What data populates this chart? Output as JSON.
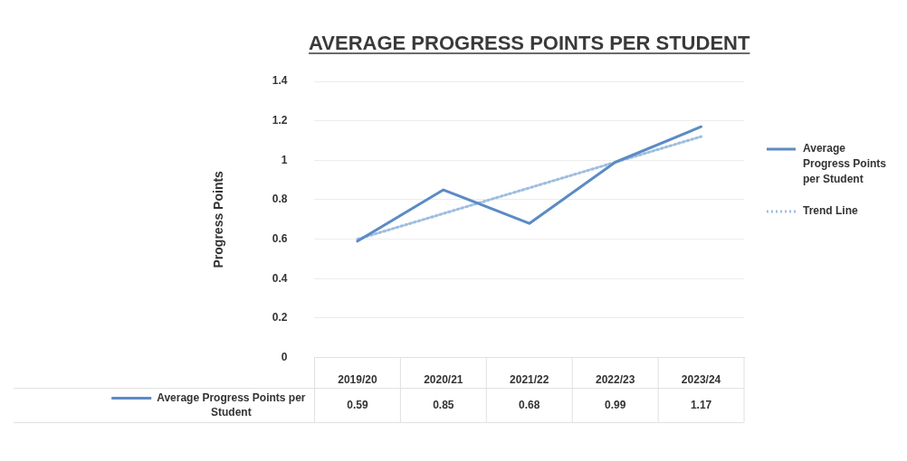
{
  "chart_data": {
    "type": "line",
    "title": "AVERAGE PROGRESS POINTS PER STUDENT",
    "ylabel": "Progress Points",
    "categories": [
      "2019/20",
      "2020/21",
      "2021/22",
      "2022/23",
      "2023/24"
    ],
    "series": [
      {
        "name": "Average Progress Points per Student",
        "color": "#5b8bc5",
        "line_style": "solid",
        "values": [
          0.59,
          0.85,
          0.68,
          0.99,
          1.17
        ],
        "value_labels": [
          "0.59",
          "0.85",
          "0.68",
          "0.99",
          "1.17"
        ]
      },
      {
        "name": "Trend Line",
        "color": "#9dbde0",
        "line_style": "dotted",
        "values": [
          0.6,
          0.73,
          0.86,
          0.99,
          1.12
        ]
      }
    ],
    "ylim": [
      0,
      1.4
    ],
    "yticks": [
      0,
      0.2,
      0.4,
      0.6,
      0.8,
      1,
      1.2,
      1.4
    ],
    "grid": "y",
    "legend": "right",
    "marker": "none"
  }
}
